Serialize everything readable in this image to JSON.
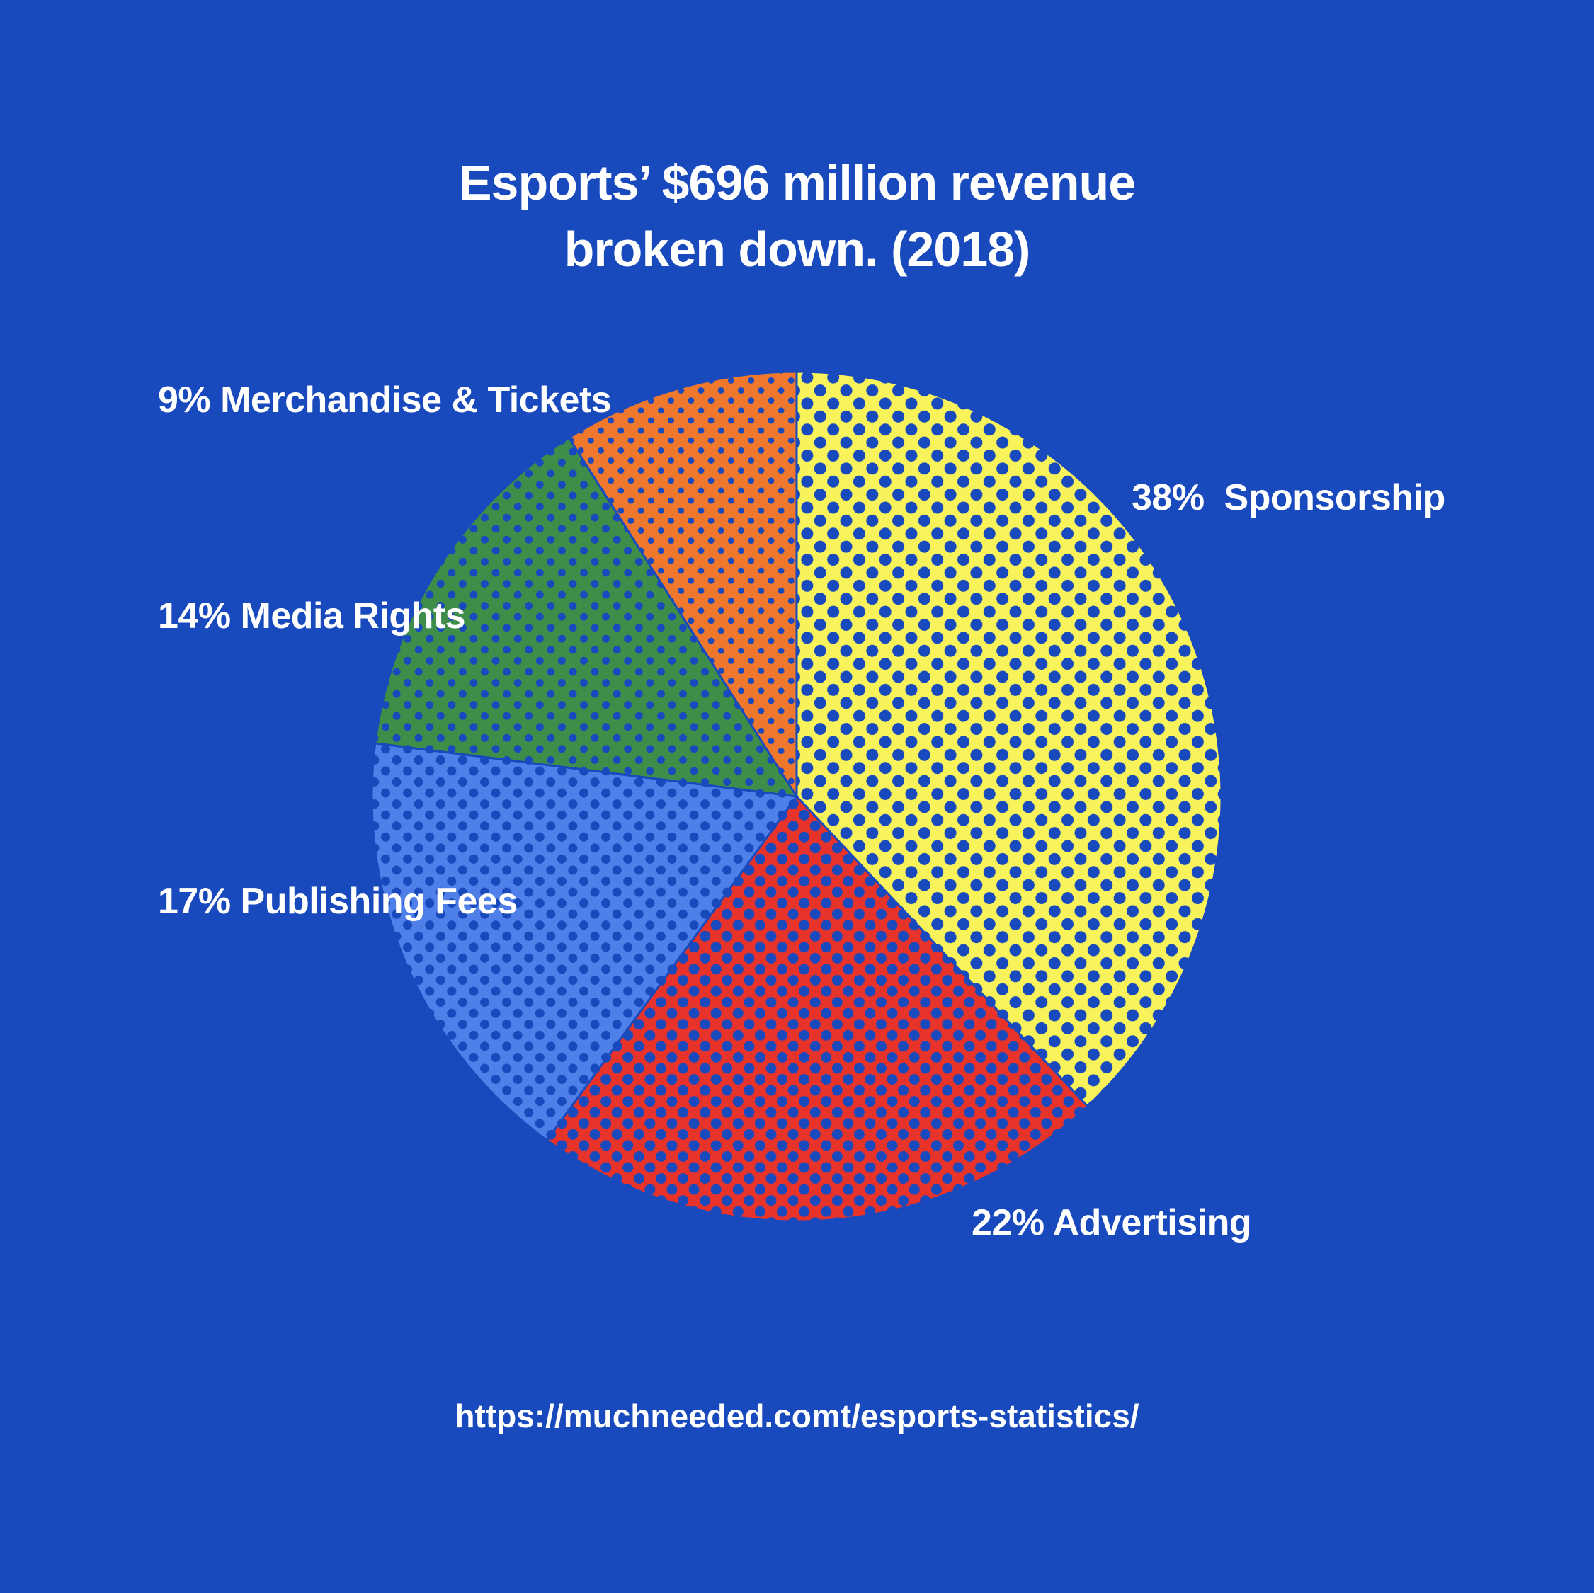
{
  "title_lines": [
    "Esports’ $696 million revenue",
    "broken down. (2018)"
  ],
  "source_url": "https://muchneeded.comt/esports-statistics/",
  "background_color": "#1849bd",
  "chart_data": {
    "type": "pie",
    "title": "Esports’ $696 million revenue broken down. (2018)",
    "unit": "%",
    "slices": [
      {
        "label": "38%  Sponsorship",
        "category": "Sponsorship",
        "value": 38,
        "color": "#f8f35a"
      },
      {
        "label": "22% Advertising",
        "category": "Advertising",
        "value": 22,
        "color": "#e8332b"
      },
      {
        "label": "17% Publishing Fees",
        "category": "Publishing Fees",
        "value": 17,
        "color": "#4f7fe8"
      },
      {
        "label": "14% Media Rights",
        "category": "Media Rights",
        "value": 14,
        "color": "#3e8e4a"
      },
      {
        "label": "9% Merchandise & Tickets",
        "category": "Merchandise & Tickets",
        "value": 9,
        "color": "#ef782d"
      }
    ],
    "dot_color": "#1849bd",
    "start": "12 o'clock",
    "direction": "clockwise",
    "legend": "none",
    "data_labels": "outside"
  }
}
